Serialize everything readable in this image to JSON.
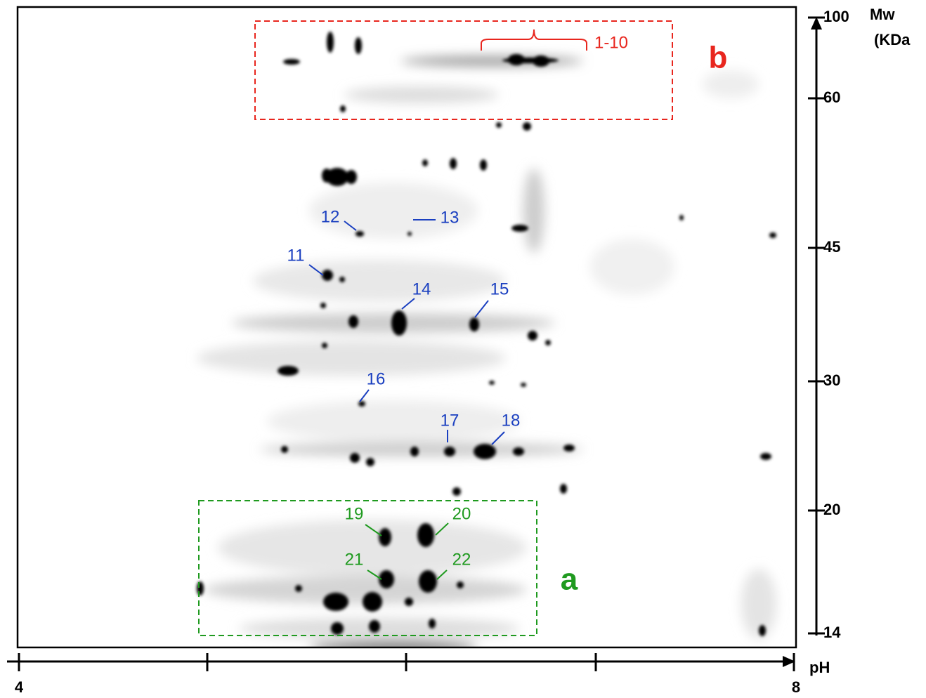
{
  "spot_labels": [
    "1-10",
    "11",
    "12",
    "13",
    "14",
    "15",
    "16",
    "17",
    "18",
    "19",
    "20",
    "21",
    "22"
  ],
  "region_labels": [
    "b",
    "a"
  ],
  "mw_axis": {
    "title": "Mw",
    "unit": "(KDa",
    "ticks": [
      "100",
      "60",
      "45",
      "30",
      "20",
      "14"
    ]
  },
  "ph_axis": {
    "title": "pH",
    "ticks": [
      "4",
      "8"
    ]
  }
}
